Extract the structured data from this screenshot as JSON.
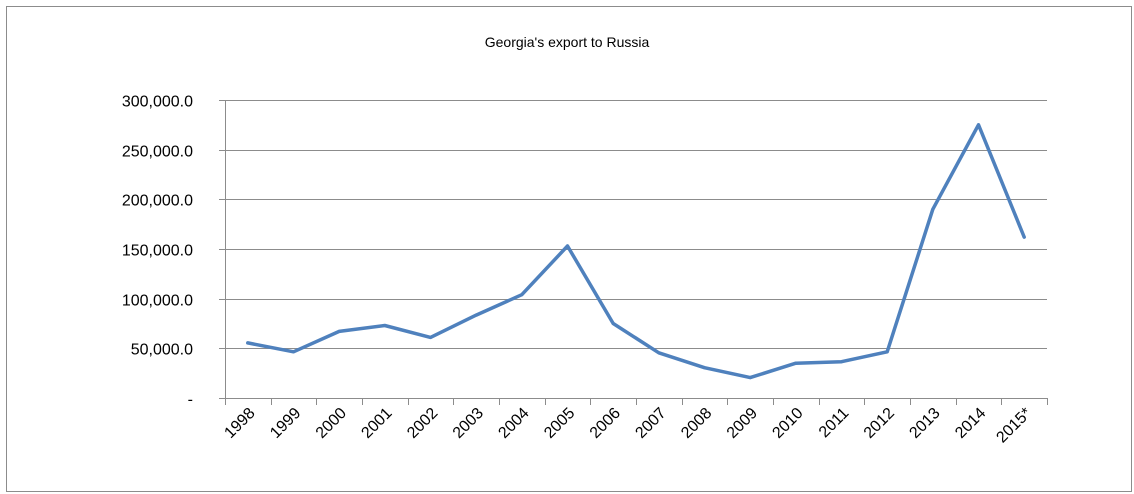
{
  "chart_data": {
    "type": "line",
    "title": "Georgia's export to Russia",
    "xlabel": "",
    "ylabel": "",
    "categories": [
      "1998",
      "1999",
      "2000",
      "2001",
      "2002",
      "2003",
      "2004",
      "2005",
      "2006",
      "2007",
      "2008",
      "2009",
      "2010",
      "2011",
      "2012",
      "2013",
      "2014",
      "2015*"
    ],
    "series": [
      {
        "values": [
          55500,
          46500,
          67000,
          73000,
          61000,
          83500,
          104000,
          153000,
          75000,
          45500,
          30500,
          20500,
          35000,
          36500,
          46500,
          190000,
          275000,
          162000
        ],
        "color": "#4f81bd"
      }
    ],
    "ylim": [
      0,
      300000
    ],
    "yticks": [
      0,
      50000,
      100000,
      150000,
      200000,
      250000,
      300000
    ],
    "ytick_labels": [
      " -",
      "50,000.0",
      "100,000.0",
      "150,000.0",
      "200,000.0",
      "250,000.0",
      "300,000.0"
    ],
    "grid": true,
    "legend": "none"
  }
}
